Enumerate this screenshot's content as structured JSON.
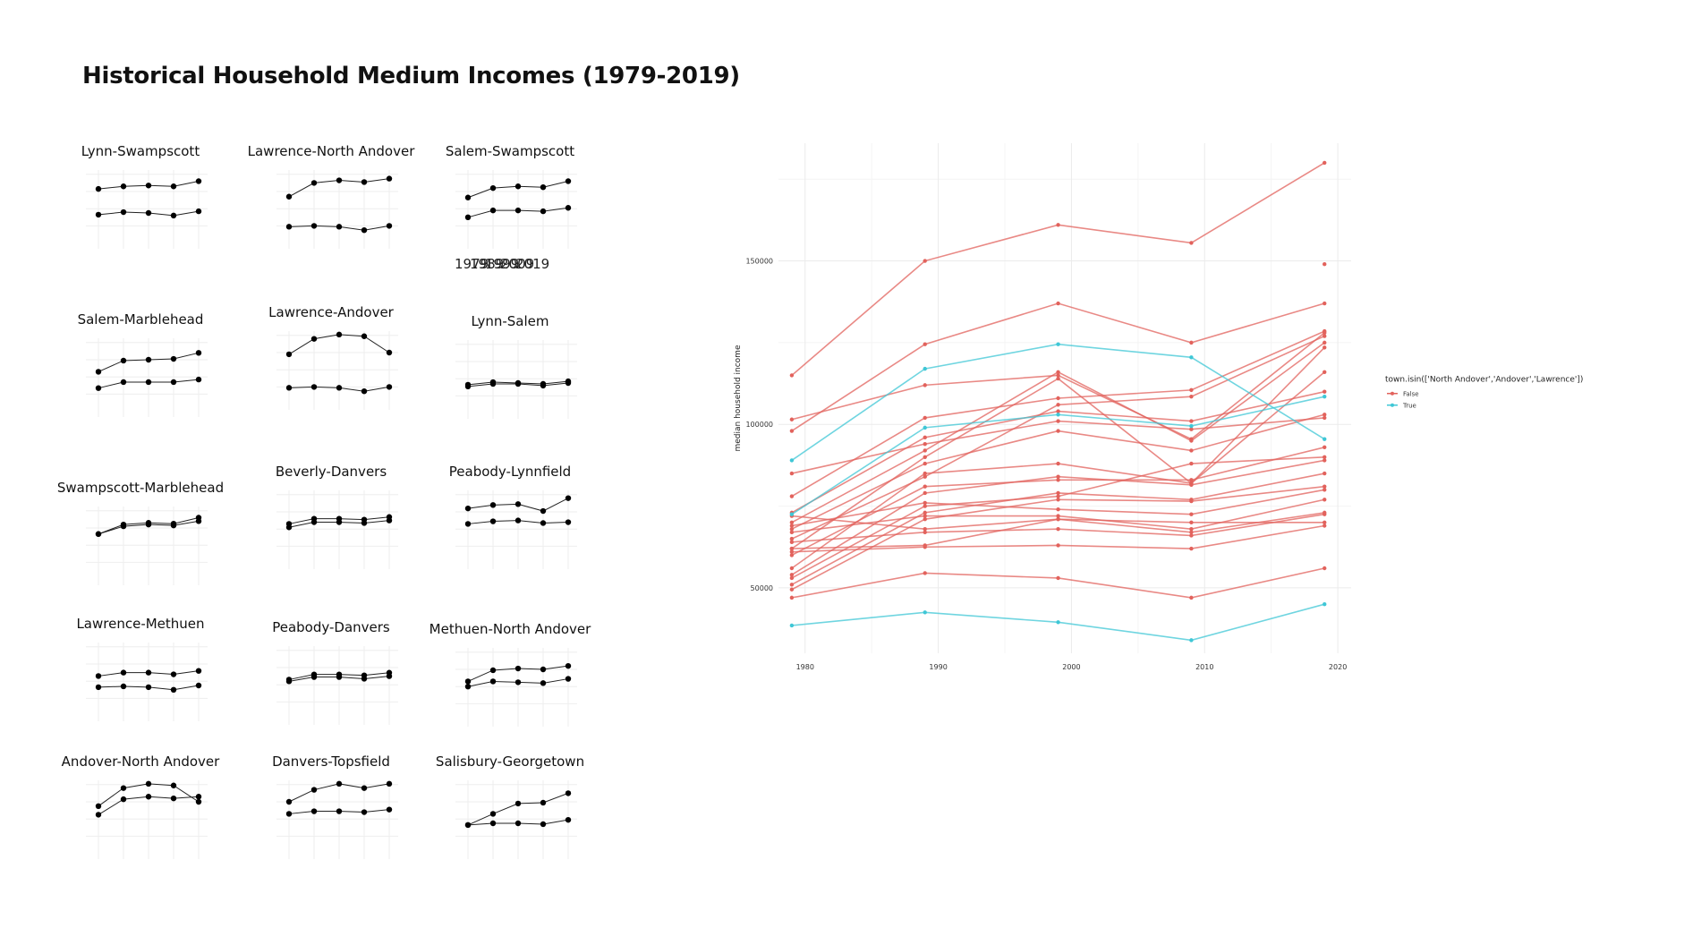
{
  "title": "Historical Household Medium Incomes (1979-2019)",
  "chart_data": [
    {
      "type": "line",
      "title": "",
      "xlabel": "",
      "ylabel": "median household income",
      "x": [
        1979,
        1989,
        1999,
        2009,
        2019
      ],
      "x_ticks": [
        "1980",
        "1990",
        "2000",
        "2010",
        "2020"
      ],
      "y_ticks": [
        "50000",
        "100000",
        "150000"
      ],
      "xlim": [
        1978,
        2021
      ],
      "ylim": [
        30000,
        186000
      ],
      "grid": true,
      "legend": {
        "title": "town.isin(['North Andover','Andover','Lawrence'])",
        "placement": "right",
        "entries": [
          "False",
          "True"
        ]
      },
      "colors": {
        "False": "#e2625c",
        "True": "#3fc7d6"
      },
      "series": [
        {
          "group": "False",
          "values": [
            115000,
            150000,
            161000,
            155500,
            180000
          ]
        },
        {
          "group": "False",
          "values": [
            98000,
            124500,
            137000,
            125000,
            137000
          ]
        },
        {
          "group": "False",
          "values": [
            101500,
            112000,
            115000,
            95500,
            128000
          ]
        },
        {
          "group": "False",
          "values": [
            85000,
            94000,
            101000,
            98500,
            102000
          ]
        },
        {
          "group": "False",
          "values": [
            78000,
            102000,
            108000,
            110500,
            128500
          ]
        },
        {
          "group": "False",
          "values": [
            73000,
            96000,
            104000,
            101000,
            110000
          ]
        },
        {
          "group": "False",
          "values": [
            70000,
            92000,
            116000,
            95000,
            125000
          ]
        },
        {
          "group": "False",
          "values": [
            68000,
            88000,
            98000,
            92000,
            103000
          ]
        },
        {
          "group": "False",
          "values": [
            65000,
            84000,
            106000,
            108500,
            127000
          ]
        },
        {
          "group": "False",
          "values": [
            62000,
            90000,
            114000,
            82000,
            123500
          ]
        },
        {
          "group": "False",
          "values": [
            60000,
            81000,
            83000,
            83000,
            93000
          ]
        },
        {
          "group": "False",
          "values": [
            56000,
            85000,
            88000,
            82000,
            116000
          ]
        },
        {
          "group": "False",
          "values": [
            54000,
            79000,
            84000,
            81500,
            89000
          ]
        },
        {
          "group": "False",
          "values": [
            53000,
            75000,
            78000,
            88000,
            90000
          ]
        },
        {
          "group": "False",
          "values": [
            51000,
            73000,
            79000,
            77000,
            85000
          ]
        },
        {
          "group": "False",
          "values": [
            49500,
            71000,
            77000,
            76500,
            81000
          ]
        },
        {
          "group": "False",
          "values": [
            69000,
            76000,
            74000,
            72500,
            80000
          ]
        },
        {
          "group": "False",
          "values": [
            67000,
            72000,
            72000,
            68000,
            77000
          ]
        },
        {
          "group": "False",
          "values": [
            72000,
            68000,
            71000,
            67000,
            73000
          ]
        },
        {
          "group": "False",
          "values": [
            64000,
            67000,
            68000,
            66000,
            72500
          ]
        },
        {
          "group": "False",
          "values": [
            62000,
            63000,
            71000,
            70000,
            70000
          ]
        },
        {
          "group": "False",
          "values": [
            61000,
            62500,
            63000,
            62000,
            69000
          ]
        },
        {
          "group": "False",
          "values": [
            47000,
            54500,
            53000,
            47000,
            56000
          ]
        },
        {
          "group": "True",
          "values": [
            89000,
            117000,
            124500,
            120500,
            95500
          ]
        },
        {
          "group": "True",
          "values": [
            72500,
            99000,
            103000,
            99500,
            108500
          ]
        },
        {
          "group": "True",
          "values": [
            38500,
            42500,
            39500,
            34000,
            45000
          ]
        }
      ],
      "extra_points": [
        {
          "group": "False",
          "x": 2019,
          "y": 149000
        }
      ]
    },
    {
      "type": "line",
      "title": "Lynn-Swampscott",
      "x": [
        1979,
        1989,
        1999,
        2009,
        2019
      ],
      "series": [
        {
          "values": [
            83000,
            86000,
            87000,
            86000,
            92000
          ]
        },
        {
          "values": [
            53000,
            56000,
            55000,
            52000,
            57000
          ]
        }
      ]
    },
    {
      "type": "line",
      "title": "Lawrence-North Andover",
      "x": [
        1979,
        1989,
        1999,
        2009,
        2019
      ],
      "series": [
        {
          "values": [
            74000,
            90000,
            93000,
            91000,
            95000
          ]
        },
        {
          "values": [
            39000,
            40000,
            39000,
            35000,
            40000
          ]
        }
      ]
    },
    {
      "type": "line",
      "title": "Salem-Swampscott",
      "x": [
        1979,
        1989,
        1999,
        2009,
        2019
      ],
      "series": [
        {
          "values": [
            73000,
            84000,
            86000,
            85000,
            92000
          ]
        },
        {
          "values": [
            50000,
            58000,
            58000,
            57000,
            61000
          ]
        }
      ]
    },
    {
      "type": "line",
      "title": "Salem-Marblehead",
      "x": [
        1979,
        1989,
        1999,
        2009,
        2019
      ],
      "series": [
        {
          "values": [
            66000,
            79000,
            80000,
            81000,
            88000
          ]
        },
        {
          "values": [
            47000,
            54000,
            54000,
            54000,
            57000
          ]
        }
      ]
    },
    {
      "type": "line",
      "title": "Lawrence-Andover",
      "x": [
        1979,
        1989,
        1999,
        2009,
        2019
      ],
      "series": [
        {
          "values": [
            78000,
            96000,
            101000,
            99000,
            80000
          ]
        },
        {
          "values": [
            39000,
            40000,
            39000,
            35000,
            40000
          ]
        }
      ]
    },
    {
      "type": "line",
      "title": "Lynn-Salem",
      "x": [
        1979,
        1989,
        1999,
        2009,
        2019
      ],
      "series": [
        {
          "values": [
            53000,
            56000,
            55000,
            54000,
            57000
          ]
        },
        {
          "values": [
            51000,
            54000,
            54000,
            52000,
            55000
          ]
        }
      ]
    },
    {
      "type": "line",
      "title": "Swampscott-Marblehead",
      "x": [
        1979,
        1989,
        1999,
        2009,
        2019
      ],
      "series": [
        {
          "values": [
            73000,
            84000,
            86000,
            85000,
            92000
          ]
        },
        {
          "values": [
            73000,
            82000,
            84000,
            83000,
            88000
          ]
        }
      ]
    },
    {
      "type": "line",
      "title": "Beverly-Danvers",
      "x": [
        1979,
        1989,
        1999,
        2009,
        2019
      ],
      "series": [
        {
          "values": [
            66000,
            72000,
            72000,
            71000,
            74000
          ]
        },
        {
          "values": [
            62000,
            68000,
            68000,
            67000,
            70000
          ]
        }
      ]
    },
    {
      "type": "line",
      "title": "Peabody-Lynnfield",
      "x": [
        1979,
        1989,
        1999,
        2009,
        2019
      ],
      "series": [
        {
          "values": [
            84000,
            88000,
            89000,
            81000,
            96000
          ]
        },
        {
          "values": [
            66000,
            69000,
            70000,
            67000,
            68000
          ]
        }
      ]
    },
    {
      "type": "line",
      "title": "Lawrence-Methuen",
      "x": [
        1979,
        1989,
        1999,
        2009,
        2019
      ],
      "series": [
        {
          "values": [
            66000,
            70000,
            70000,
            68000,
            72000
          ]
        },
        {
          "values": [
            53000,
            54000,
            53000,
            50000,
            55000
          ]
        }
      ]
    },
    {
      "type": "line",
      "title": "Peabody-Danvers",
      "x": [
        1979,
        1989,
        1999,
        2009,
        2019
      ],
      "series": [
        {
          "values": [
            66000,
            72000,
            72000,
            71000,
            74000
          ]
        },
        {
          "values": [
            64000,
            69000,
            69000,
            67000,
            70000
          ]
        }
      ]
    },
    {
      "type": "line",
      "title": "Methuen-North Andover",
      "x": [
        1979,
        1989,
        1999,
        2009,
        2019
      ],
      "series": [
        {
          "values": [
            66000,
            79000,
            81000,
            80000,
            84000
          ]
        },
        {
          "values": [
            60000,
            66000,
            65000,
            64000,
            69000
          ]
        }
      ]
    },
    {
      "type": "line",
      "title": "Andover-North Andover",
      "x": [
        1979,
        1989,
        1999,
        2009,
        2019
      ],
      "series": [
        {
          "values": [
            75000,
            96000,
            101000,
            99000,
            80000
          ]
        },
        {
          "values": [
            65000,
            83000,
            86000,
            84000,
            86000
          ]
        }
      ]
    },
    {
      "type": "line",
      "title": "Danvers-Topsfield",
      "x": [
        1979,
        1989,
        1999,
        2009,
        2019
      ],
      "series": [
        {
          "values": [
            80000,
            94000,
            101000,
            96000,
            101000
          ]
        },
        {
          "values": [
            66000,
            69000,
            69000,
            68000,
            71000
          ]
        }
      ]
    },
    {
      "type": "line",
      "title": "Salisbury-Georgetown",
      "x": [
        1979,
        1989,
        1999,
        2009,
        2019
      ],
      "series": [
        {
          "values": [
            53000,
            66000,
            78000,
            79000,
            90000
          ]
        },
        {
          "values": [
            53000,
            55000,
            55000,
            54000,
            59000
          ]
        }
      ]
    }
  ],
  "stray_tick_labels": [
    "1979",
    "1989",
    "1999",
    "2009",
    "2019"
  ]
}
